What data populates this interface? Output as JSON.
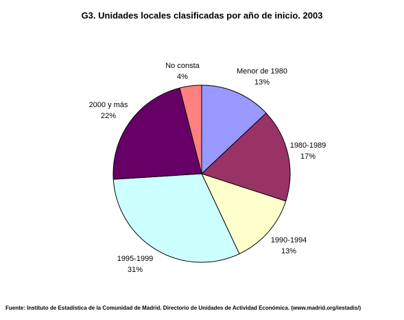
{
  "chart_data": {
    "type": "pie",
    "title": "G3. Unidades locales clasificadas por año de inicio. 2003",
    "slices": [
      {
        "name": "Menor de 1980",
        "value": 13,
        "label": "13%",
        "color": "#9999ff"
      },
      {
        "name": "1980-1989",
        "value": 17,
        "label": "17%",
        "color": "#993366"
      },
      {
        "name": "1990-1994",
        "value": 13,
        "label": "13%",
        "color": "#ffffcc"
      },
      {
        "name": "1995-1999",
        "value": 31,
        "label": "31%",
        "color": "#ccffff"
      },
      {
        "name": "2000 y más",
        "value": 22,
        "label": "22%",
        "color": "#660066"
      },
      {
        "name": "No consta",
        "value": 4,
        "label": "4%",
        "color": "#ff8080"
      }
    ],
    "legend": "none"
  },
  "source": "Fuente: Instituto de Estadística de la Comunidad de Madrid. Directorio de Unidades de Actividad Económica. (www.madrid.org/iestadis/)"
}
